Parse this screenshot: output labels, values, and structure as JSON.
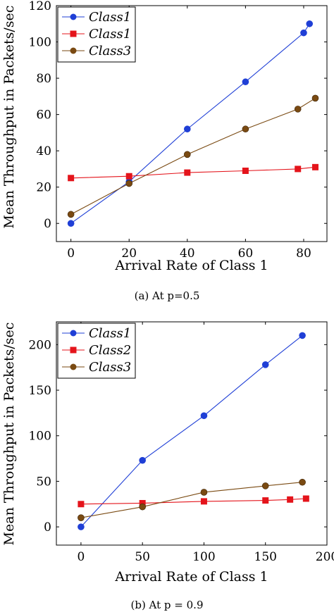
{
  "chart_data": [
    {
      "type": "line",
      "caption": "(a)  At p=0.5",
      "xlabel": "Arrival Rate of Class 1",
      "ylabel": "Mean Throughput in Packets/sec",
      "xlim": [
        -5,
        88
      ],
      "ylim": [
        -10,
        120
      ],
      "xticks": [
        0,
        20,
        40,
        60,
        80
      ],
      "yticks": [
        0,
        20,
        40,
        60,
        80,
        100,
        120
      ],
      "grid": false,
      "legend_position": "top-left",
      "series": [
        {
          "name": "Class1",
          "color": "#1f3fd6",
          "marker": "circle",
          "x": [
            0,
            20,
            40,
            60,
            80,
            82
          ],
          "y": [
            0,
            23,
            52,
            78,
            105,
            110
          ]
        },
        {
          "name": "Class1",
          "color": "#e4141b",
          "marker": "square",
          "x": [
            0,
            20,
            40,
            60,
            78,
            84
          ],
          "y": [
            25,
            26,
            28,
            29,
            30,
            31
          ]
        },
        {
          "name": "Class3",
          "color": "#7a4a12",
          "marker": "circle",
          "x": [
            0,
            20,
            40,
            60,
            78,
            84
          ],
          "y": [
            5,
            22,
            38,
            52,
            63,
            69
          ]
        }
      ]
    },
    {
      "type": "line",
      "caption": "(b)  At p = 0.9",
      "xlabel": "Arrival Rate of Class 1",
      "ylabel": "Mean Throughput in Packets/sec",
      "xlim": [
        -20,
        200
      ],
      "ylim": [
        -20,
        225
      ],
      "xticks": [
        0,
        50,
        100,
        150,
        200
      ],
      "yticks": [
        0,
        50,
        100,
        150,
        200
      ],
      "grid": false,
      "legend_position": "top-left",
      "series": [
        {
          "name": "Class1",
          "color": "#1f3fd6",
          "marker": "circle",
          "x": [
            0,
            50,
            100,
            150,
            180
          ],
          "y": [
            0,
            73,
            122,
            178,
            210
          ]
        },
        {
          "name": "Class2",
          "color": "#e4141b",
          "marker": "square",
          "x": [
            0,
            50,
            100,
            150,
            170,
            183
          ],
          "y": [
            25,
            26,
            28,
            29,
            30,
            31
          ]
        },
        {
          "name": "Class3",
          "color": "#7a4a12",
          "marker": "circle",
          "x": [
            0,
            50,
            100,
            150,
            180
          ],
          "y": [
            10,
            22,
            38,
            45,
            49
          ]
        }
      ]
    }
  ]
}
